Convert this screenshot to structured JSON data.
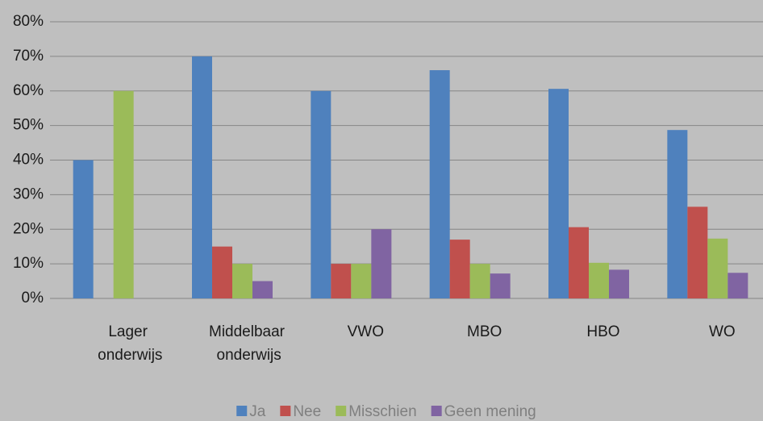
{
  "chart_data": {
    "type": "bar",
    "categories": [
      "Lager onderwijs",
      "Middelbaar onderwijs",
      "VWO",
      "MBO",
      "HBO",
      "WO"
    ],
    "series": [
      {
        "name": "Ja",
        "color": "#4f81bd",
        "values": [
          40,
          70,
          60,
          66,
          60.6,
          48.7
        ]
      },
      {
        "name": "Nee",
        "color": "#c0504d",
        "values": [
          0,
          15,
          10,
          17,
          20.6,
          26.5
        ]
      },
      {
        "name": "Misschien",
        "color": "#9bbb59",
        "values": [
          60,
          10,
          10,
          10,
          10.3,
          17.3
        ]
      },
      {
        "name": "Geen mening",
        "color": "#8064a2",
        "values": [
          0,
          5,
          20,
          7.2,
          8.3,
          7.4
        ]
      }
    ],
    "ylim": [
      0,
      80
    ],
    "yticks": [
      {
        "value": 0,
        "label": "0%"
      },
      {
        "value": 10,
        "label": "10%"
      },
      {
        "value": 20,
        "label": "20%"
      },
      {
        "value": 30,
        "label": "30%"
      },
      {
        "value": 40,
        "label": "40%"
      },
      {
        "value": 50,
        "label": "50%"
      },
      {
        "value": 60,
        "label": "60%"
      },
      {
        "value": 70,
        "label": "70%"
      },
      {
        "value": 80,
        "label": "80%"
      }
    ],
    "grid": true,
    "legend": "bottom"
  }
}
